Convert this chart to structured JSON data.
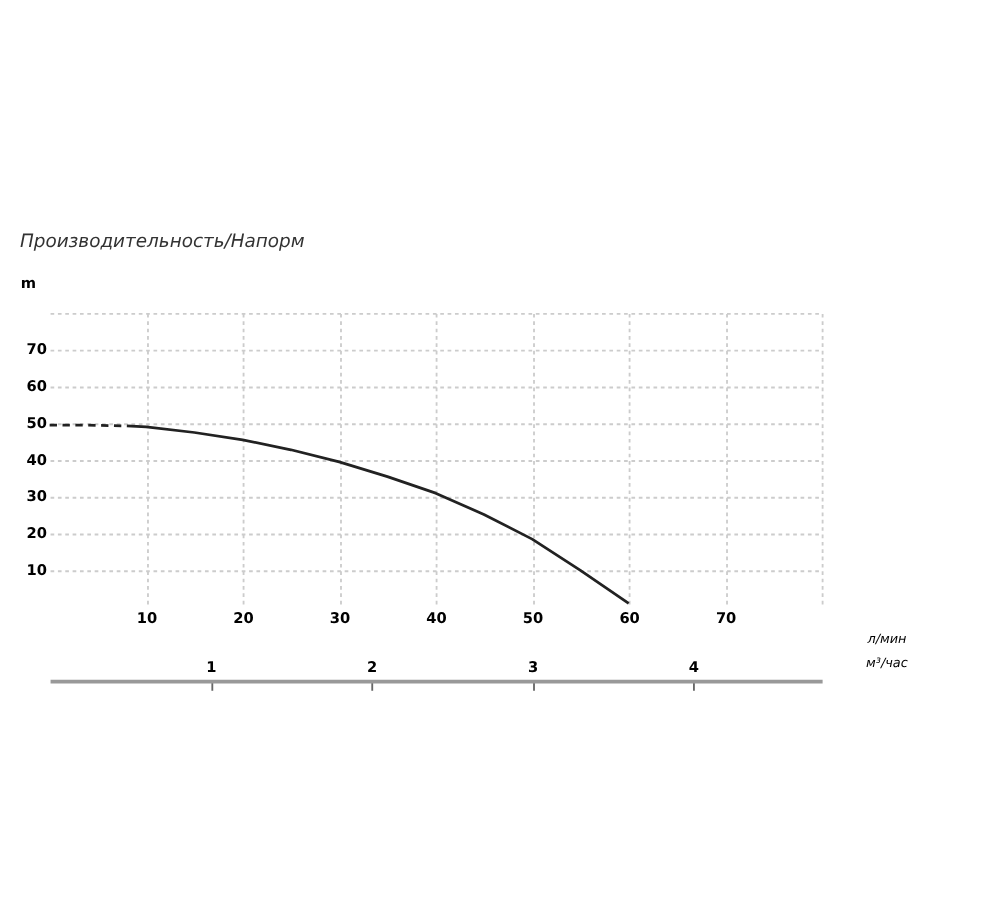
{
  "chart_data": {
    "type": "line",
    "title": "Производительность/Напорм",
    "ylabel": "m",
    "xlabel": "л/мин",
    "x2label": "м³/час",
    "series": [
      {
        "color": "#222222",
        "line_style": "dashed",
        "x": [
          0,
          4,
          8
        ],
        "values": [
          49.5,
          49.5,
          49.3
        ]
      },
      {
        "color": "#222222",
        "line_style": "solid",
        "x": [
          8,
          10,
          15,
          20,
          25,
          30,
          35,
          40,
          45,
          50,
          55,
          60
        ],
        "values": [
          49.3,
          49,
          47.5,
          45.5,
          42.8,
          39.5,
          35.5,
          31,
          25.2,
          18.5,
          10,
          1
        ]
      }
    ],
    "xlim": [
      0,
      80
    ],
    "xticks": [
      10,
      20,
      30,
      40,
      50,
      60,
      70,
      {
        "value": 80,
        "label": null
      }
    ],
    "ylim": [
      0,
      80
    ],
    "yticks": [
      10,
      20,
      30,
      40,
      50,
      60,
      70,
      {
        "value": 80,
        "label": null
      }
    ],
    "x2lim": [
      0,
      4.8
    ],
    "x2ticks": [
      1,
      2,
      3,
      4
    ],
    "grid": true,
    "legend": false,
    "marker": "none"
  }
}
